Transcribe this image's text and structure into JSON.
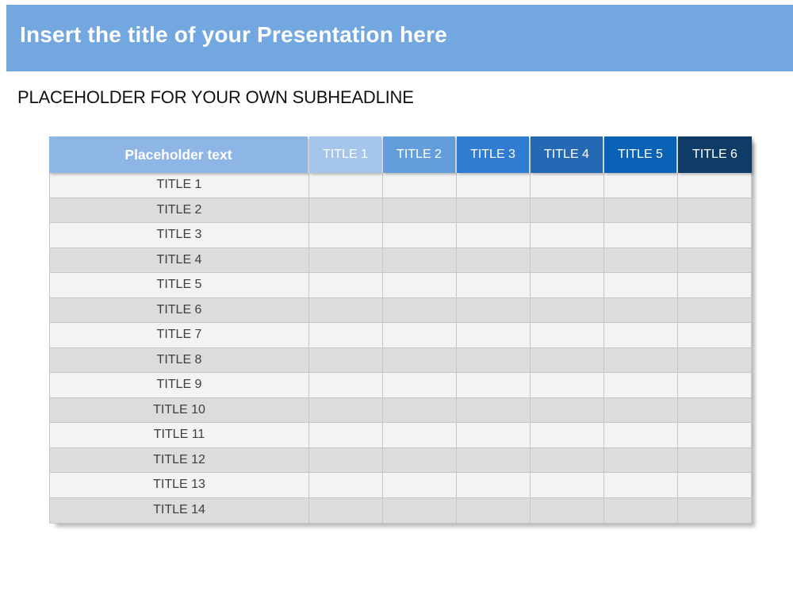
{
  "slide": {
    "title": "Insert the title of your Presentation here",
    "subheadline": "PLACEHOLDER FOR YOUR OWN SUBHEADLINE"
  },
  "table": {
    "header": {
      "label": "Placeholder text",
      "columns": [
        {
          "label": "TITLE 1",
          "color": "#A5C5EA"
        },
        {
          "label": "TITLE 2",
          "color": "#639EDC"
        },
        {
          "label": "TITLE 3",
          "color": "#2F7CD2"
        },
        {
          "label": "TITLE 4",
          "color": "#2569B5"
        },
        {
          "label": "TITLE 5",
          "color": "#0A62B7"
        },
        {
          "label": "TITLE 6",
          "color": "#0E3C67"
        }
      ]
    },
    "rows": [
      "TITLE 1",
      "TITLE 2",
      "TITLE 3",
      "TITLE 4",
      "TITLE 5",
      "TITLE 6",
      "TITLE 7",
      "TITLE 8",
      "TITLE 9",
      "TITLE 10",
      "TITLE 11",
      "TITLE 12",
      "TITLE 13",
      "TITLE 14"
    ]
  },
  "colors": {
    "banner": "#73A7E0",
    "header_first": "#8DB5E5",
    "row_odd": "#F3F3F3",
    "row_even": "#DCDCDC",
    "border": "#C6C6C6",
    "body_text": "#3F3F3F",
    "title_text": "#FFFFFF",
    "subheadline_text": "#111111"
  }
}
